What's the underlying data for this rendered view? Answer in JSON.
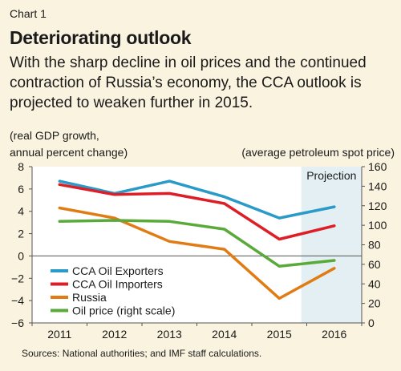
{
  "header": {
    "chart_label": "Chart 1",
    "title": "Deteriorating outlook",
    "subtitle": "With the sharp decline in oil prices and the continued contraction of Russia’s economy, the CCA outlook is projected to weaken further in 2015.",
    "left_unit_line1": "(real GDP growth,",
    "left_unit_line2": "annual percent change)",
    "right_unit": "(average petroleum spot price)"
  },
  "source": "Sources: National authorities; and IMF staff calculations.",
  "colors": {
    "background": "#faf3df",
    "plot_background": "#ffffff",
    "projection_shade": "#e3eff2",
    "cca_oil_exporters": "#2a9ac9",
    "cca_oil_importers": "#dd1e26",
    "russia": "#e17b14",
    "oil_price": "#5aaa3a"
  },
  "chart_data": {
    "type": "line",
    "categories": [
      "2011",
      "2012",
      "2013",
      "2014",
      "2015",
      "2016"
    ],
    "projection_label": "Projection",
    "projection_start": "2015",
    "ylim_left": [
      -6,
      8
    ],
    "yticks_left": [
      -6,
      -4,
      -2,
      0,
      2,
      4,
      6,
      8
    ],
    "ylim_right": [
      0,
      160
    ],
    "yticks_right": [
      0,
      20,
      40,
      60,
      80,
      100,
      120,
      140,
      160
    ],
    "grid": false,
    "legend_position": "bottom-left",
    "series": [
      {
        "name": "CCA Oil Exporters",
        "axis": "left",
        "color_key": "cca_oil_exporters",
        "values": [
          6.7,
          5.6,
          6.7,
          5.3,
          3.4,
          4.4
        ]
      },
      {
        "name": "CCA Oil Importers",
        "axis": "left",
        "color_key": "cca_oil_importers",
        "values": [
          6.4,
          5.5,
          5.6,
          4.7,
          1.5,
          2.7
        ]
      },
      {
        "name": "Russia",
        "axis": "left",
        "color_key": "russia",
        "values": [
          4.3,
          3.4,
          1.3,
          0.6,
          -3.8,
          -1.1
        ]
      },
      {
        "name": "Oil price (right scale)",
        "axis": "right",
        "color_key": "oil_price",
        "values": [
          104,
          105,
          104,
          96,
          58,
          64
        ]
      }
    ]
  }
}
